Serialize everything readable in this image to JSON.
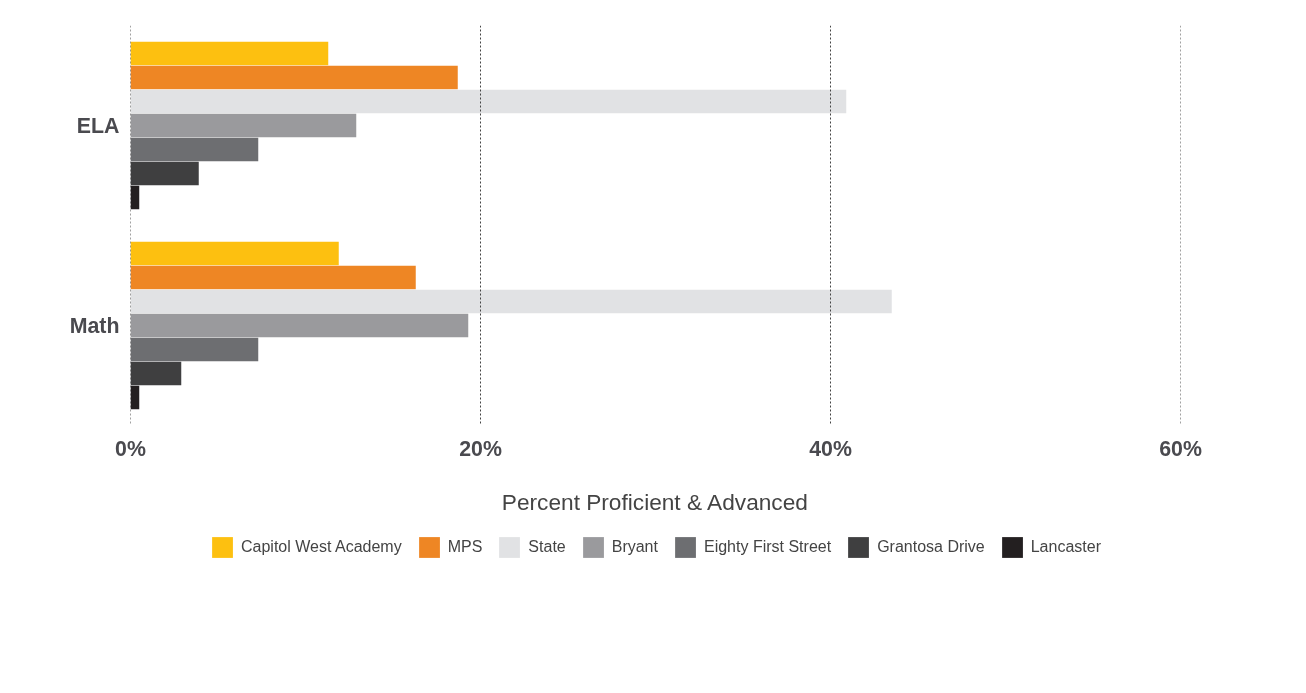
{
  "chart_data": {
    "type": "bar",
    "orientation": "horizontal",
    "xlabel": "Percent Proficient & Advanced",
    "categories": [
      "ELA",
      "Math"
    ],
    "series": [
      {
        "name": "Capitol West Academy",
        "color": "#fdc010",
        "values": [
          11.3,
          11.9
        ]
      },
      {
        "name": "MPS",
        "color": "#ee8624",
        "values": [
          18.7,
          16.3
        ]
      },
      {
        "name": "State",
        "color": "#e1e2e4",
        "values": [
          40.9,
          43.5
        ]
      },
      {
        "name": "Bryant",
        "color": "#9a9a9d",
        "values": [
          12.9,
          19.3
        ]
      },
      {
        "name": "Eighty First Street",
        "color": "#6d6e71",
        "values": [
          7.3,
          7.3
        ]
      },
      {
        "name": "Grantosa Drive",
        "color": "#3f3f40",
        "values": [
          3.9,
          2.9
        ]
      },
      {
        "name": "Lancaster",
        "color": "#231f20",
        "values": [
          0.5,
          0.5
        ]
      }
    ],
    "xlim": [
      0,
      60
    ],
    "xticks": [
      {
        "value": 0,
        "label": "0%"
      },
      {
        "value": 20,
        "label": "20%"
      },
      {
        "value": 40,
        "label": "40%"
      },
      {
        "value": 60,
        "label": "60%"
      }
    ],
    "grid": "x",
    "legend": "bottom"
  }
}
